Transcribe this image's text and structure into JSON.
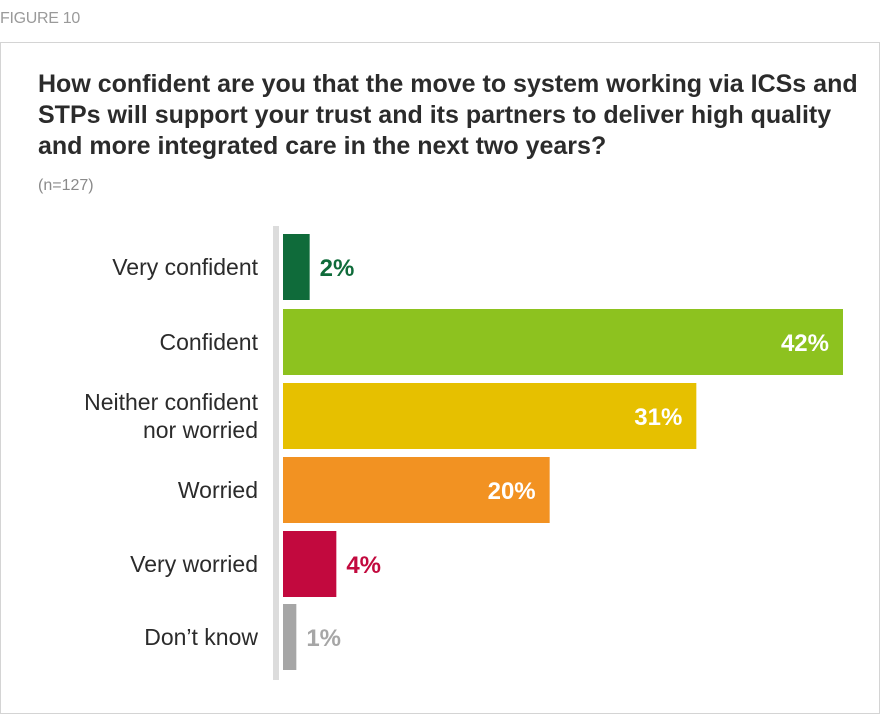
{
  "figure_label": "FIGURE 10",
  "chart_data": {
    "type": "bar",
    "orientation": "horizontal",
    "title": "How confident are you that the move to system working via ICSs and STPs will support your trust and its partners to deliver high quality and more integrated care in the next two years?",
    "subtitle": "(n=127)",
    "categories": [
      [
        "Very confident"
      ],
      [
        "Confident"
      ],
      [
        "Neither confident",
        "nor worried"
      ],
      [
        "Worried"
      ],
      [
        "Very worried"
      ],
      [
        "Don’t know"
      ]
    ],
    "values": [
      2,
      42,
      31,
      20,
      4,
      1
    ],
    "value_labels": [
      "2%",
      "42%",
      "31%",
      "20%",
      "4%",
      "1%"
    ],
    "colors": [
      "#0f6b3a",
      "#8dc21f",
      "#e6c000",
      "#f29222",
      "#c2093e",
      "#a6a6a6"
    ],
    "value_label_position": [
      "outside",
      "inside",
      "inside",
      "inside",
      "outside",
      "outside"
    ],
    "xlim": [
      0,
      42
    ],
    "grid": false,
    "legend": "none"
  }
}
